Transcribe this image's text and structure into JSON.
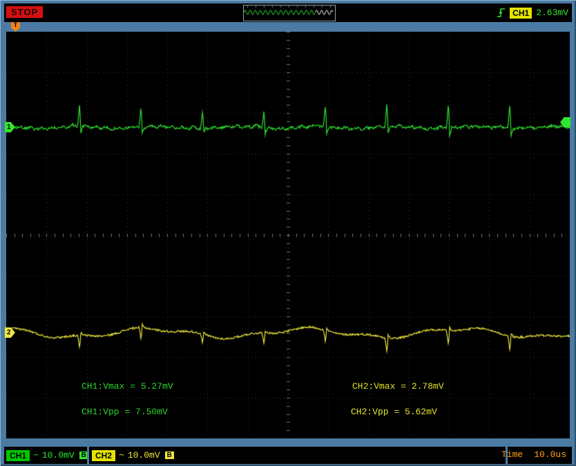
{
  "top_bar": {
    "status_label": "STOP",
    "trigger_source": "CH1",
    "trigger_level": "2.63mV"
  },
  "screen": {
    "trigger_position_marker": "T",
    "ch1_marker": "1",
    "ch2_marker": "2",
    "measurements": {
      "ch1_vmax": "CH1:Vmax = 5.27mV",
      "ch1_vpp": "CH1:Vpp = 7.50mV",
      "ch2_vmax": "CH2:Vmax = 2.78mV",
      "ch2_vpp": "CH2:Vpp = 5.62mV"
    }
  },
  "bottom_bar": {
    "ch1_label": "CH1",
    "ch1_coupling": "~",
    "ch1_scale": "10.0mV",
    "ch1_badge": "B",
    "ch2_label": "CH2",
    "ch2_coupling": "~",
    "ch2_scale": "10.0mV",
    "ch2_badge": "B",
    "time_label": "Time",
    "time_value": "10.0us"
  },
  "colors": {
    "frame": "#4b7ba3",
    "ch1": "#30e630",
    "ch2": "#eee63c",
    "stop_bg": "#d41010",
    "time_text": "#ffa019",
    "trigger_marker": "#f08418"
  },
  "grid": {
    "cols": 14,
    "rows": 10,
    "dot_color": "#3e3e3e",
    "tick_color": "#787878"
  },
  "waveforms": {
    "ch1": {
      "color": "#30e630",
      "baseline": 139,
      "noise": 2.0,
      "amp1": 1.0,
      "f1": 0.4,
      "amp2": 1.6,
      "f2": 0.055,
      "spike_start": 106,
      "spike_period": 89,
      "spike_up": 27,
      "spike_down": 11,
      "bump": 3,
      "spike_min": 0,
      "spike_max": 7
    },
    "ch2": {
      "color": "#eee63c",
      "baseline": 437,
      "noise": 1.5,
      "amp1": 2.5,
      "f1": 0.075,
      "amp2": 6,
      "f2": 0.028,
      "spike_start": 106,
      "spike_period": 89,
      "spike_up": -15,
      "spike_down": -5,
      "bump": 0,
      "spike_min": 0,
      "spike_max": 7
    }
  },
  "preview": {
    "color": "#30e630",
    "tail_color": "#ffffff",
    "amp": 3.2,
    "freq": 0.85,
    "tail_start": 104
  }
}
